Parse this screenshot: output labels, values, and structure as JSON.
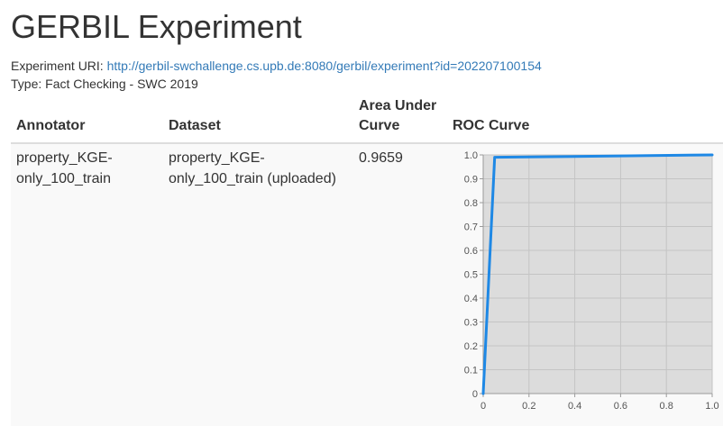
{
  "header": {
    "title": "GERBIL Experiment"
  },
  "experiment": {
    "uri_label": "Experiment URI: ",
    "uri": "http://gerbil-swchallenge.cs.upb.de:8080/gerbil/experiment?id=202207100154",
    "type_label": "Type: ",
    "type_value": "Fact Checking - SWC 2019"
  },
  "table": {
    "headers": {
      "annotator": "Annotator",
      "dataset": "Dataset",
      "auc_line1": "Area Under",
      "auc_line2": "Curve",
      "roc": "ROC Curve"
    },
    "rows": [
      {
        "annotator_line1": "property_KGE-",
        "annotator_line2": "only_100_train",
        "dataset_line1": "property_KGE-",
        "dataset_line2": "only_100_train (uploaded)",
        "auc": "0.9659"
      }
    ]
  },
  "colors": {
    "line": "#1e88e5",
    "plot_background": "#dcdcdc",
    "grid": "#c4c4c4",
    "link": "#337ab7"
  },
  "chart_data": {
    "type": "line",
    "x": [
      0,
      0.05,
      1.0
    ],
    "y": [
      0,
      0.99,
      1.0
    ],
    "xlim": [
      0,
      1
    ],
    "ylim": [
      0,
      1
    ],
    "xticks": [
      "0",
      "0.2",
      "0.4",
      "0.6",
      "0.8",
      "1.0"
    ],
    "yticks": [
      "0",
      "0.1",
      "0.2",
      "0.3",
      "0.4",
      "0.5",
      "0.6",
      "0.7",
      "0.8",
      "0.9",
      "1.0"
    ],
    "grid": true
  }
}
